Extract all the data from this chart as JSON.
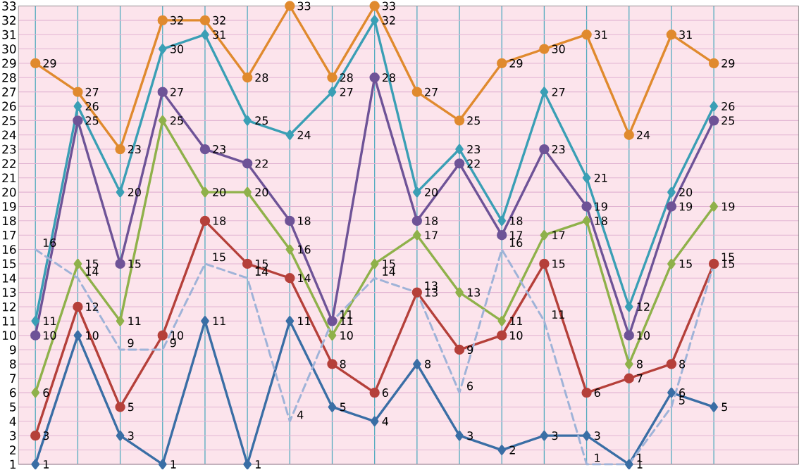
{
  "chart_data": {
    "type": "line",
    "categories": [
      null,
      null,
      null,
      null,
      null,
      null,
      null,
      null,
      null,
      null,
      null,
      null,
      null,
      null,
      null,
      null,
      null
    ],
    "ylim": [
      1,
      33
    ],
    "yticks": [
      1,
      2,
      3,
      4,
      5,
      6,
      7,
      8,
      9,
      10,
      11,
      12,
      13,
      14,
      15,
      16,
      17,
      18,
      19,
      20,
      21,
      22,
      23,
      24,
      25,
      26,
      27,
      28,
      29,
      30,
      31,
      32,
      33
    ],
    "grid": true,
    "data_labels": true,
    "tick_labels": "y",
    "series": [
      {
        "color": "#3a6ea5",
        "marker": "diamond",
        "line_style": "solid",
        "values": [
          1,
          10,
          3,
          1,
          11,
          1,
          11,
          5,
          4,
          8,
          3,
          2,
          3,
          3,
          1,
          6,
          5
        ]
      },
      {
        "color": "#b5403a",
        "marker": "circle",
        "line_style": "solid",
        "values": [
          3,
          12,
          5,
          10,
          18,
          15,
          14,
          8,
          6,
          13,
          9,
          10,
          15,
          6,
          7,
          8,
          15
        ]
      },
      {
        "color": "#8fb14a",
        "marker": "diamond",
        "line_style": "solid",
        "values": [
          6,
          15,
          11,
          25,
          20,
          20,
          16,
          10,
          15,
          17,
          13,
          11,
          17,
          18,
          8,
          15,
          19
        ]
      },
      {
        "color": "#6e5397",
        "marker": "circle",
        "line_style": "solid",
        "values": [
          10,
          25,
          15,
          27,
          23,
          22,
          18,
          11,
          28,
          18,
          22,
          17,
          23,
          19,
          10,
          19,
          25
        ]
      },
      {
        "color": "#3a9fb5",
        "marker": "diamond",
        "line_style": "solid",
        "values": [
          11,
          26,
          20,
          30,
          31,
          25,
          24,
          27,
          32,
          20,
          23,
          18,
          27,
          21,
          12,
          20,
          26
        ]
      },
      {
        "color": "#e08a2e",
        "marker": "circle",
        "line_style": "solid",
        "values": [
          29,
          27,
          23,
          32,
          32,
          28,
          33,
          28,
          33,
          27,
          25,
          29,
          30,
          31,
          24,
          31,
          29
        ]
      },
      {
        "color": "#9fb3d8",
        "marker": "none",
        "line_style": "dashed",
        "values": [
          16,
          14,
          9,
          9,
          15,
          14,
          4,
          11,
          14,
          13,
          6,
          16,
          11,
          1,
          1,
          5,
          15
        ]
      }
    ]
  }
}
